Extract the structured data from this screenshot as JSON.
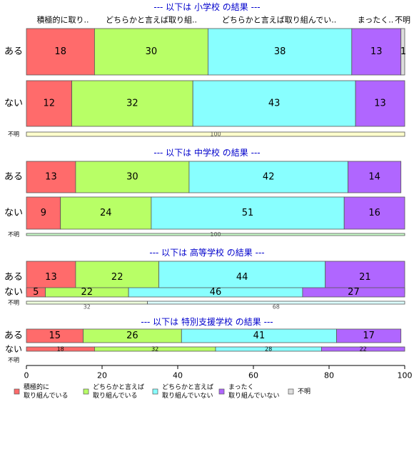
{
  "chart_data": {
    "type": "bar",
    "orientation": "horizontal",
    "stacked": "percent",
    "xlim": [
      0,
      100
    ],
    "xticks": [
      0,
      20,
      40,
      60,
      80,
      100
    ],
    "top_labels": [
      "積極的に取り..",
      "どちらかと言えば取り組..",
      "どちらかと言えば取り組んでい..",
      "まったく..",
      "不明"
    ],
    "legend": {
      "placement": "bottom",
      "items": [
        {
          "label1": "積極的に",
          "label2": "取り組んでいる",
          "color": "#FF6B6B"
        },
        {
          "label1": "どちらかと言えば",
          "label2": "取り組んでいる",
          "color": "#B8FF66"
        },
        {
          "label1": "どちらかと言えば",
          "label2": "取り組んでいない",
          "color": "#88FFFF"
        },
        {
          "label1": "まったく",
          "label2": "取り組んでいない",
          "color": "#B066FF"
        },
        {
          "label1": "不明",
          "label2": "",
          "color": "#DDDDDD"
        }
      ]
    },
    "panels": [
      {
        "title": "--- 以下は 小学校 の結果 ---",
        "rows": [
          {
            "label": "ある",
            "values": [
              18,
              30,
              38,
              13,
              1
            ],
            "labels": [
              "18",
              "30",
              "38",
              "13",
              "1"
            ]
          },
          {
            "label": "ない",
            "values": [
              12,
              32,
              43,
              13,
              0
            ],
            "labels": [
              "12",
              "32",
              "43",
              "13",
              ""
            ]
          },
          {
            "label": "不明",
            "values": [
              0,
              0,
              0,
              0,
              0
            ],
            "labels": [
              "",
              "",
              "",
              "",
              ""
            ],
            "total_label": "100",
            "special_color": "#FFFFCC"
          }
        ]
      },
      {
        "title": "--- 以下は 中学校 の結果 ---",
        "rows": [
          {
            "label": "ある",
            "values": [
              13,
              30,
              42,
              14,
              0
            ],
            "labels": [
              "13",
              "30",
              "42",
              "14",
              ""
            ]
          },
          {
            "label": "ない",
            "values": [
              9,
              24,
              51,
              16,
              0
            ],
            "labels": [
              "9",
              "24",
              "51",
              "16",
              ""
            ]
          },
          {
            "label": "不明",
            "values": [
              0,
              0,
              0,
              0,
              0
            ],
            "labels": [
              "",
              "",
              "",
              "",
              ""
            ],
            "total_label": "100",
            "special_color": "#CCFFCC"
          }
        ]
      },
      {
        "title": "--- 以下は 高等学校 の結果 ---",
        "rows": [
          {
            "label": "ある",
            "values": [
              13,
              22,
              44,
              21,
              0
            ],
            "labels": [
              "13",
              "22",
              "44",
              "21",
              ""
            ]
          },
          {
            "label": "ない",
            "values": [
              5,
              22,
              46,
              27,
              0
            ],
            "labels": [
              "5",
              "22",
              "46",
              "27",
              ""
            ]
          },
          {
            "label": "不明",
            "values": [
              0,
              32,
              68,
              0,
              0
            ],
            "labels": [
              "",
              "32",
              "68",
              "",
              ""
            ],
            "faded": true
          }
        ]
      },
      {
        "title": "--- 以下は 特別支援学校 の結果 ---",
        "rows": [
          {
            "label": "ある",
            "values": [
              15,
              26,
              41,
              17,
              0
            ],
            "labels": [
              "15",
              "26",
              "41",
              "17",
              ""
            ]
          },
          {
            "label": "ない",
            "values": [
              18,
              32,
              28,
              22,
              0
            ],
            "labels": [
              "18",
              "32",
              "28",
              "22",
              ""
            ]
          },
          {
            "label": "不明",
            "values": [
              0,
              0,
              0,
              0,
              0
            ],
            "labels": [
              "",
              "",
              "",
              "",
              ""
            ]
          }
        ]
      }
    ]
  }
}
